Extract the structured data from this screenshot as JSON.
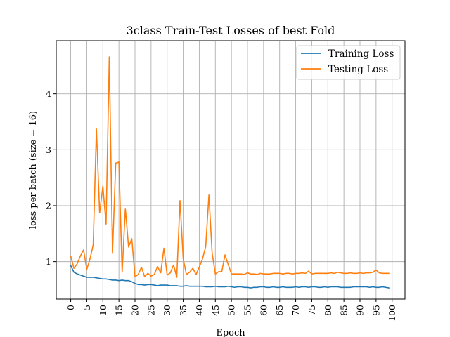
{
  "chart_data": {
    "type": "line",
    "title": "3class Train-Test Losses of best Fold",
    "xlabel": "Epoch",
    "ylabel": "loss per batch (size = 16)",
    "xlim": [
      -4.5,
      104
    ],
    "ylim": [
      0.33,
      4.95
    ],
    "xticks": [
      0,
      5,
      10,
      15,
      20,
      25,
      30,
      35,
      40,
      45,
      50,
      55,
      60,
      65,
      70,
      75,
      80,
      85,
      90,
      95,
      100
    ],
    "yticks": [
      1,
      2,
      3,
      4
    ],
    "grid": true,
    "legend_position": "top-right",
    "x": [
      0,
      1,
      2,
      3,
      4,
      5,
      6,
      7,
      8,
      9,
      10,
      11,
      12,
      13,
      14,
      15,
      16,
      17,
      18,
      19,
      20,
      21,
      22,
      23,
      24,
      25,
      26,
      27,
      28,
      29,
      30,
      31,
      32,
      33,
      34,
      35,
      36,
      37,
      38,
      39,
      40,
      41,
      42,
      43,
      44,
      45,
      46,
      47,
      48,
      49,
      50,
      51,
      52,
      53,
      54,
      55,
      56,
      57,
      58,
      59,
      60,
      61,
      62,
      63,
      64,
      65,
      66,
      67,
      68,
      69,
      70,
      71,
      72,
      73,
      74,
      75,
      76,
      77,
      78,
      79,
      80,
      81,
      82,
      83,
      84,
      85,
      86,
      87,
      88,
      89,
      90,
      91,
      92,
      93,
      94,
      95,
      96,
      97,
      98,
      99
    ],
    "series": [
      {
        "name": "Training Loss",
        "color": "#1f77b4",
        "values": [
          0.93,
          0.81,
          0.78,
          0.76,
          0.74,
          0.72,
          0.72,
          0.72,
          0.71,
          0.7,
          0.69,
          0.69,
          0.68,
          0.67,
          0.67,
          0.66,
          0.67,
          0.66,
          0.66,
          0.64,
          0.61,
          0.59,
          0.59,
          0.58,
          0.59,
          0.59,
          0.58,
          0.57,
          0.58,
          0.58,
          0.58,
          0.57,
          0.57,
          0.57,
          0.56,
          0.56,
          0.57,
          0.56,
          0.56,
          0.56,
          0.56,
          0.56,
          0.55,
          0.55,
          0.55,
          0.56,
          0.55,
          0.55,
          0.55,
          0.56,
          0.55,
          0.54,
          0.55,
          0.55,
          0.54,
          0.54,
          0.53,
          0.54,
          0.54,
          0.55,
          0.55,
          0.54,
          0.54,
          0.55,
          0.54,
          0.54,
          0.55,
          0.54,
          0.54,
          0.54,
          0.55,
          0.54,
          0.55,
          0.55,
          0.54,
          0.55,
          0.55,
          0.54,
          0.54,
          0.55,
          0.54,
          0.55,
          0.55,
          0.55,
          0.54,
          0.54,
          0.54,
          0.54,
          0.55,
          0.55,
          0.55,
          0.55,
          0.55,
          0.54,
          0.55,
          0.54,
          0.54,
          0.55,
          0.54,
          0.53
        ]
      },
      {
        "name": "Testing Loss",
        "color": "#ff7f0e",
        "values": [
          1.1,
          0.88,
          0.96,
          1.1,
          1.21,
          0.86,
          1.05,
          1.3,
          3.37,
          1.87,
          2.35,
          1.67,
          4.66,
          1.15,
          2.76,
          2.78,
          0.81,
          1.95,
          1.26,
          1.41,
          0.73,
          0.77,
          0.9,
          0.73,
          0.79,
          0.74,
          0.77,
          0.91,
          0.8,
          1.24,
          0.76,
          0.8,
          0.94,
          0.72,
          2.09,
          1.05,
          0.77,
          0.81,
          0.88,
          0.77,
          0.9,
          1.05,
          1.27,
          2.19,
          1.15,
          0.78,
          0.82,
          0.82,
          1.12,
          0.95,
          0.78,
          0.78,
          0.78,
          0.78,
          0.77,
          0.8,
          0.78,
          0.78,
          0.77,
          0.79,
          0.78,
          0.78,
          0.78,
          0.79,
          0.79,
          0.79,
          0.78,
          0.79,
          0.79,
          0.78,
          0.79,
          0.79,
          0.8,
          0.79,
          0.83,
          0.78,
          0.79,
          0.79,
          0.79,
          0.79,
          0.79,
          0.8,
          0.79,
          0.81,
          0.8,
          0.79,
          0.79,
          0.8,
          0.79,
          0.79,
          0.8,
          0.79,
          0.8,
          0.8,
          0.81,
          0.85,
          0.8,
          0.79,
          0.79,
          0.79
        ]
      }
    ]
  }
}
